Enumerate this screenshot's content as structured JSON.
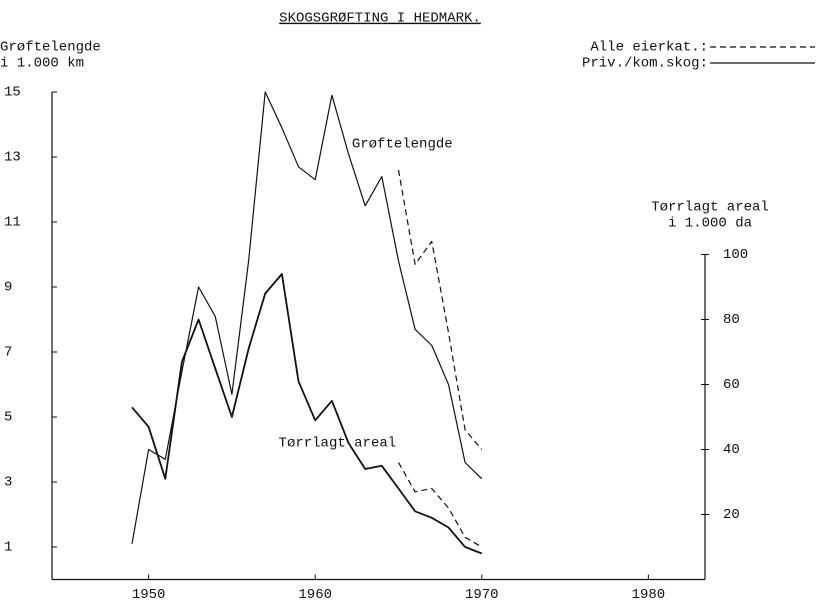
{
  "chart_data": {
    "type": "line",
    "title": "SKOGSGRØFTING I HEDMARK.",
    "ylabel": [
      "Grøftelengde",
      "i 1.000 km"
    ],
    "y2label": [
      "Tørrlagt areal",
      "i 1.000 da"
    ],
    "annotations": [
      {
        "text": "Grøftelengde",
        "x": 1962.2,
        "y": 13.4
      },
      {
        "text": "Tørrlagt areal",
        "x": 1957.8,
        "y": 4.2
      }
    ],
    "legend": [
      {
        "label": "Alle eierkat.:",
        "dashed": true
      },
      {
        "label": "Priv./kom.skog:",
        "dashed": false
      }
    ],
    "xlim": [
      1944.2,
      1983.4
    ],
    "xticks": [
      1950,
      1960,
      1970,
      1980
    ],
    "ylim": [
      0,
      15
    ],
    "yticks": [
      1,
      3,
      5,
      7,
      9,
      11,
      13,
      15
    ],
    "y2lim": [
      0,
      150
    ],
    "y2ticks": [
      20,
      40,
      60,
      80,
      100
    ],
    "color": "#111111",
    "series": [
      {
        "axis": "y",
        "dashed": false,
        "width": 1.2,
        "x": [
          1949,
          1950,
          1951,
          1952,
          1953,
          1954,
          1955,
          1956,
          1957,
          1958,
          1959,
          1960,
          1961,
          1962,
          1963,
          1964,
          1965,
          1966,
          1967,
          1968,
          1969,
          1970
        ],
        "values": [
          1.1,
          4.0,
          3.7,
          6.4,
          9.0,
          8.1,
          5.7,
          9.8,
          15.0,
          13.9,
          12.7,
          12.3,
          14.9,
          13.1,
          11.5,
          12.4,
          9.8,
          7.7,
          7.2,
          6.0,
          3.6,
          3.1
        ]
      },
      {
        "axis": "y",
        "dashed": true,
        "width": 1.2,
        "x": [
          1965,
          1966,
          1967,
          1968,
          1969,
          1970
        ],
        "values": [
          12.6,
          9.7,
          10.4,
          7.6,
          4.6,
          4.0
        ]
      },
      {
        "axis": "y2",
        "dashed": false,
        "width": 1.8,
        "x": [
          1949,
          1950,
          1951,
          1952,
          1953,
          1954,
          1955,
          1956,
          1957,
          1958,
          1959,
          1960,
          1961,
          1962,
          1963,
          1964,
          1965,
          1966,
          1967,
          1968,
          1969,
          1970
        ],
        "values": [
          53,
          47,
          31,
          67,
          80,
          65,
          50,
          71,
          88,
          94,
          61,
          49,
          55,
          42,
          34,
          35,
          28,
          21,
          19,
          16,
          10,
          8
        ]
      },
      {
        "axis": "y2",
        "dashed": true,
        "width": 1.2,
        "x": [
          1965,
          1966,
          1967,
          1968,
          1969,
          1970
        ],
        "values": [
          36,
          27,
          28,
          22,
          13,
          10
        ]
      }
    ]
  }
}
